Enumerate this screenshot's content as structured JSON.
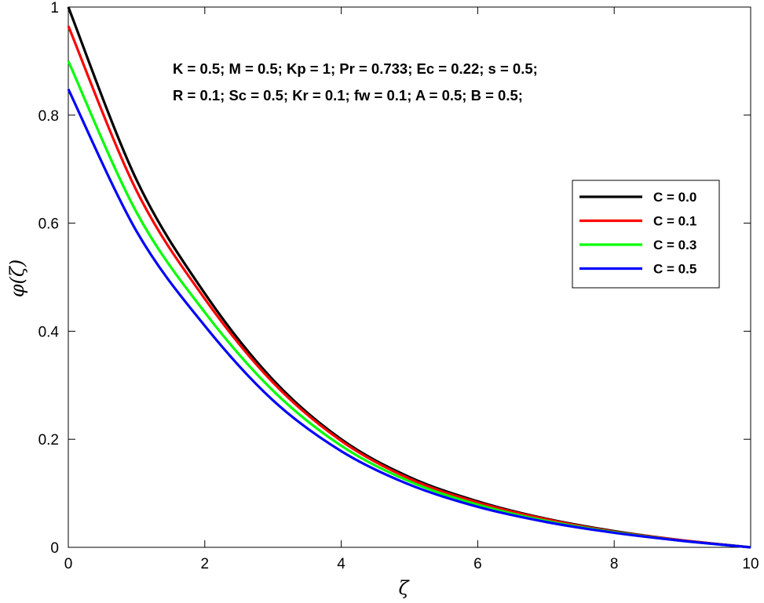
{
  "chart_data": {
    "type": "line",
    "xlabel": "ζ",
    "ylabel": "φ(ζ)",
    "xlim": [
      0,
      10
    ],
    "ylim": [
      0,
      1
    ],
    "xticks": [
      "0",
      "2",
      "4",
      "6",
      "8",
      "10"
    ],
    "yticks": [
      "0",
      "0.2",
      "0.4",
      "0.6",
      "0.8",
      "1"
    ],
    "grid": false,
    "legend_position": "right",
    "annotations": [
      "K = 0.5; M = 0.5; Kp = 1; Pr = 0.733; Ec = 0.22; s = 0.5;",
      "R = 0.1;  Sc = 0.5; Kr = 0.1; fw = 0.1; A = 0.5; B = 0.5;"
    ],
    "x": [
      0,
      1,
      2,
      3,
      4,
      5,
      6,
      7,
      8,
      9,
      10
    ],
    "series": [
      {
        "name": "C = 0.0",
        "color": "#000000",
        "values": [
          1.0,
          0.68,
          0.47,
          0.31,
          0.2,
          0.13,
          0.085,
          0.053,
          0.03,
          0.013,
          0.0
        ]
      },
      {
        "name": "C = 0.1",
        "color": "#ff0000",
        "values": [
          0.965,
          0.66,
          0.46,
          0.305,
          0.197,
          0.127,
          0.083,
          0.052,
          0.029,
          0.013,
          0.0
        ]
      },
      {
        "name": "C = 0.3",
        "color": "#00ff00",
        "values": [
          0.9,
          0.62,
          0.435,
          0.29,
          0.188,
          0.122,
          0.079,
          0.049,
          0.028,
          0.012,
          0.0
        ]
      },
      {
        "name": "C = 0.5",
        "color": "#0000ff",
        "values": [
          0.848,
          0.585,
          0.41,
          0.272,
          0.178,
          0.116,
          0.075,
          0.047,
          0.027,
          0.012,
          0.0
        ]
      }
    ]
  }
}
